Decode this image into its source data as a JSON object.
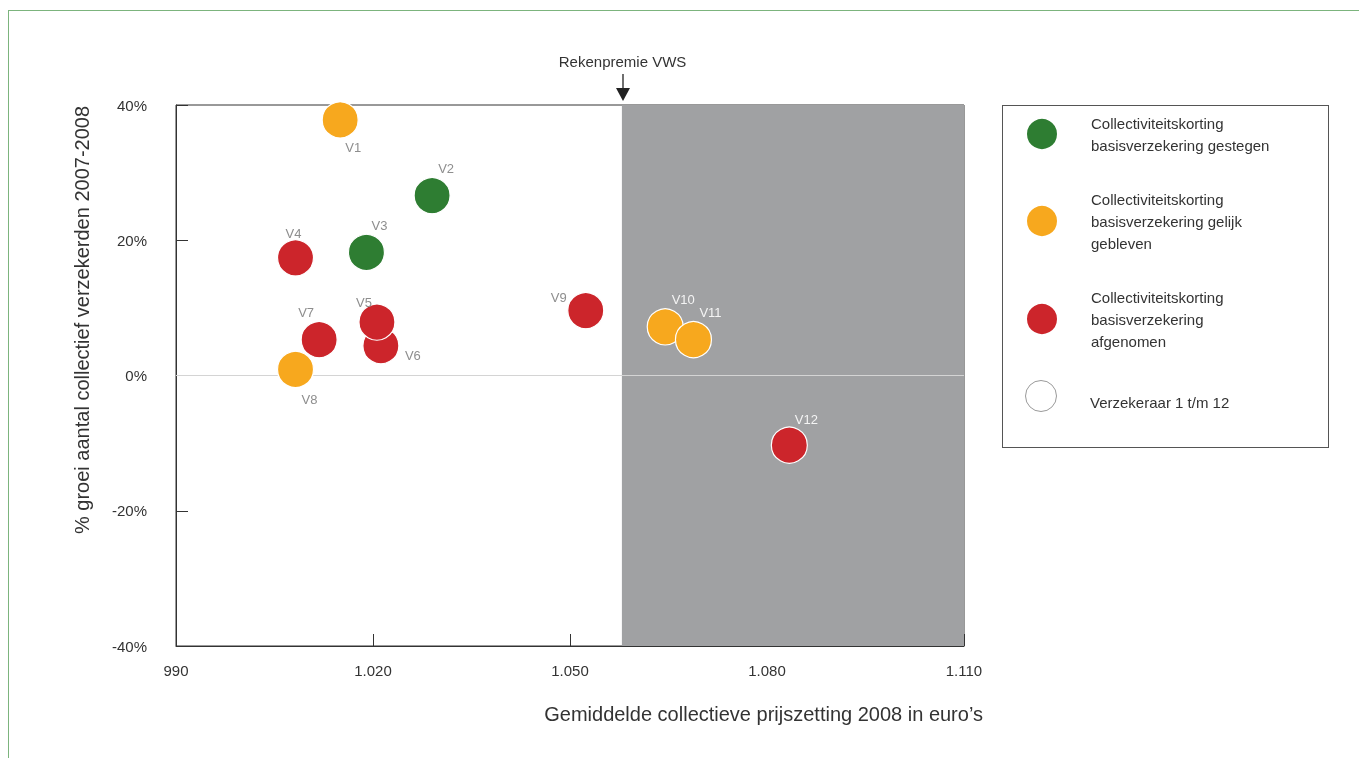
{
  "chart_data": {
    "type": "scatter",
    "xlabel": "Gemiddelde collectieve prijszetting 2008 in euro’s",
    "ylabel": "% groei aantal collectief verzekerden 2007-2008",
    "series": [
      {
        "name": "Collectiviteitskorting basisverzekering gestegen",
        "color": "#2e7d32",
        "x": [
          1029.0,
          1019.0
        ],
        "values": [
          26.6,
          18.2
        ],
        "value_labels": [
          "V2",
          "V3"
        ]
      },
      {
        "name": "Collectiviteitskorting basisverzekering gelijk gebleven",
        "color": "#f7a81e",
        "x": [
          1015.0,
          1008.2,
          1064.5,
          1068.8
        ],
        "values": [
          37.8,
          0.9,
          7.2,
          5.3
        ],
        "value_labels": [
          "V1",
          "V8",
          "V10",
          "V11"
        ]
      },
      {
        "name": "Collectiviteitskorting basisverzekering afgenomen",
        "color": "#cc252b",
        "x": [
          1008.2,
          1021.2,
          1020.6,
          1011.8,
          1052.4,
          1083.4
        ],
        "values": [
          17.4,
          4.4,
          7.9,
          5.3,
          9.6,
          -10.3
        ],
        "value_labels": [
          "V4",
          "V6",
          "V5",
          "V7",
          "V9",
          "V12"
        ]
      }
    ],
    "xlim": [
      990,
      1110
    ],
    "xticks": [
      990,
      {
        "value": 1020,
        "label": "1.020"
      },
      {
        "value": 1050,
        "label": "1.050"
      },
      {
        "value": 1080,
        "label": "1.080"
      },
      {
        "value": 1110,
        "label": "1.110"
      }
    ],
    "ylim": [
      -40,
      40
    ],
    "yticks": [
      {
        "value": -40,
        "label": "-40%"
      },
      {
        "value": -20,
        "label": "-20%"
      },
      {
        "value": 0,
        "label": "0%"
      },
      {
        "value": 20,
        "label": "20%"
      },
      {
        "value": 40,
        "label": "40%"
      }
    ],
    "ref_lines": [
      {
        "axis": "x",
        "value": 1058,
        "label": "Rekenpremie VWS",
        "color": "#a0a1a3"
      },
      {
        "axis": "y",
        "value": 0,
        "color": "#d4d4d4"
      }
    ],
    "bands": [
      {
        "axis": "x",
        "from": 1058,
        "to": 1110,
        "color": "#a0a1a3"
      }
    ],
    "annotations": [
      "Verzekeraar 1 t/m 12"
    ],
    "legend": "right",
    "marker": "circle"
  }
}
